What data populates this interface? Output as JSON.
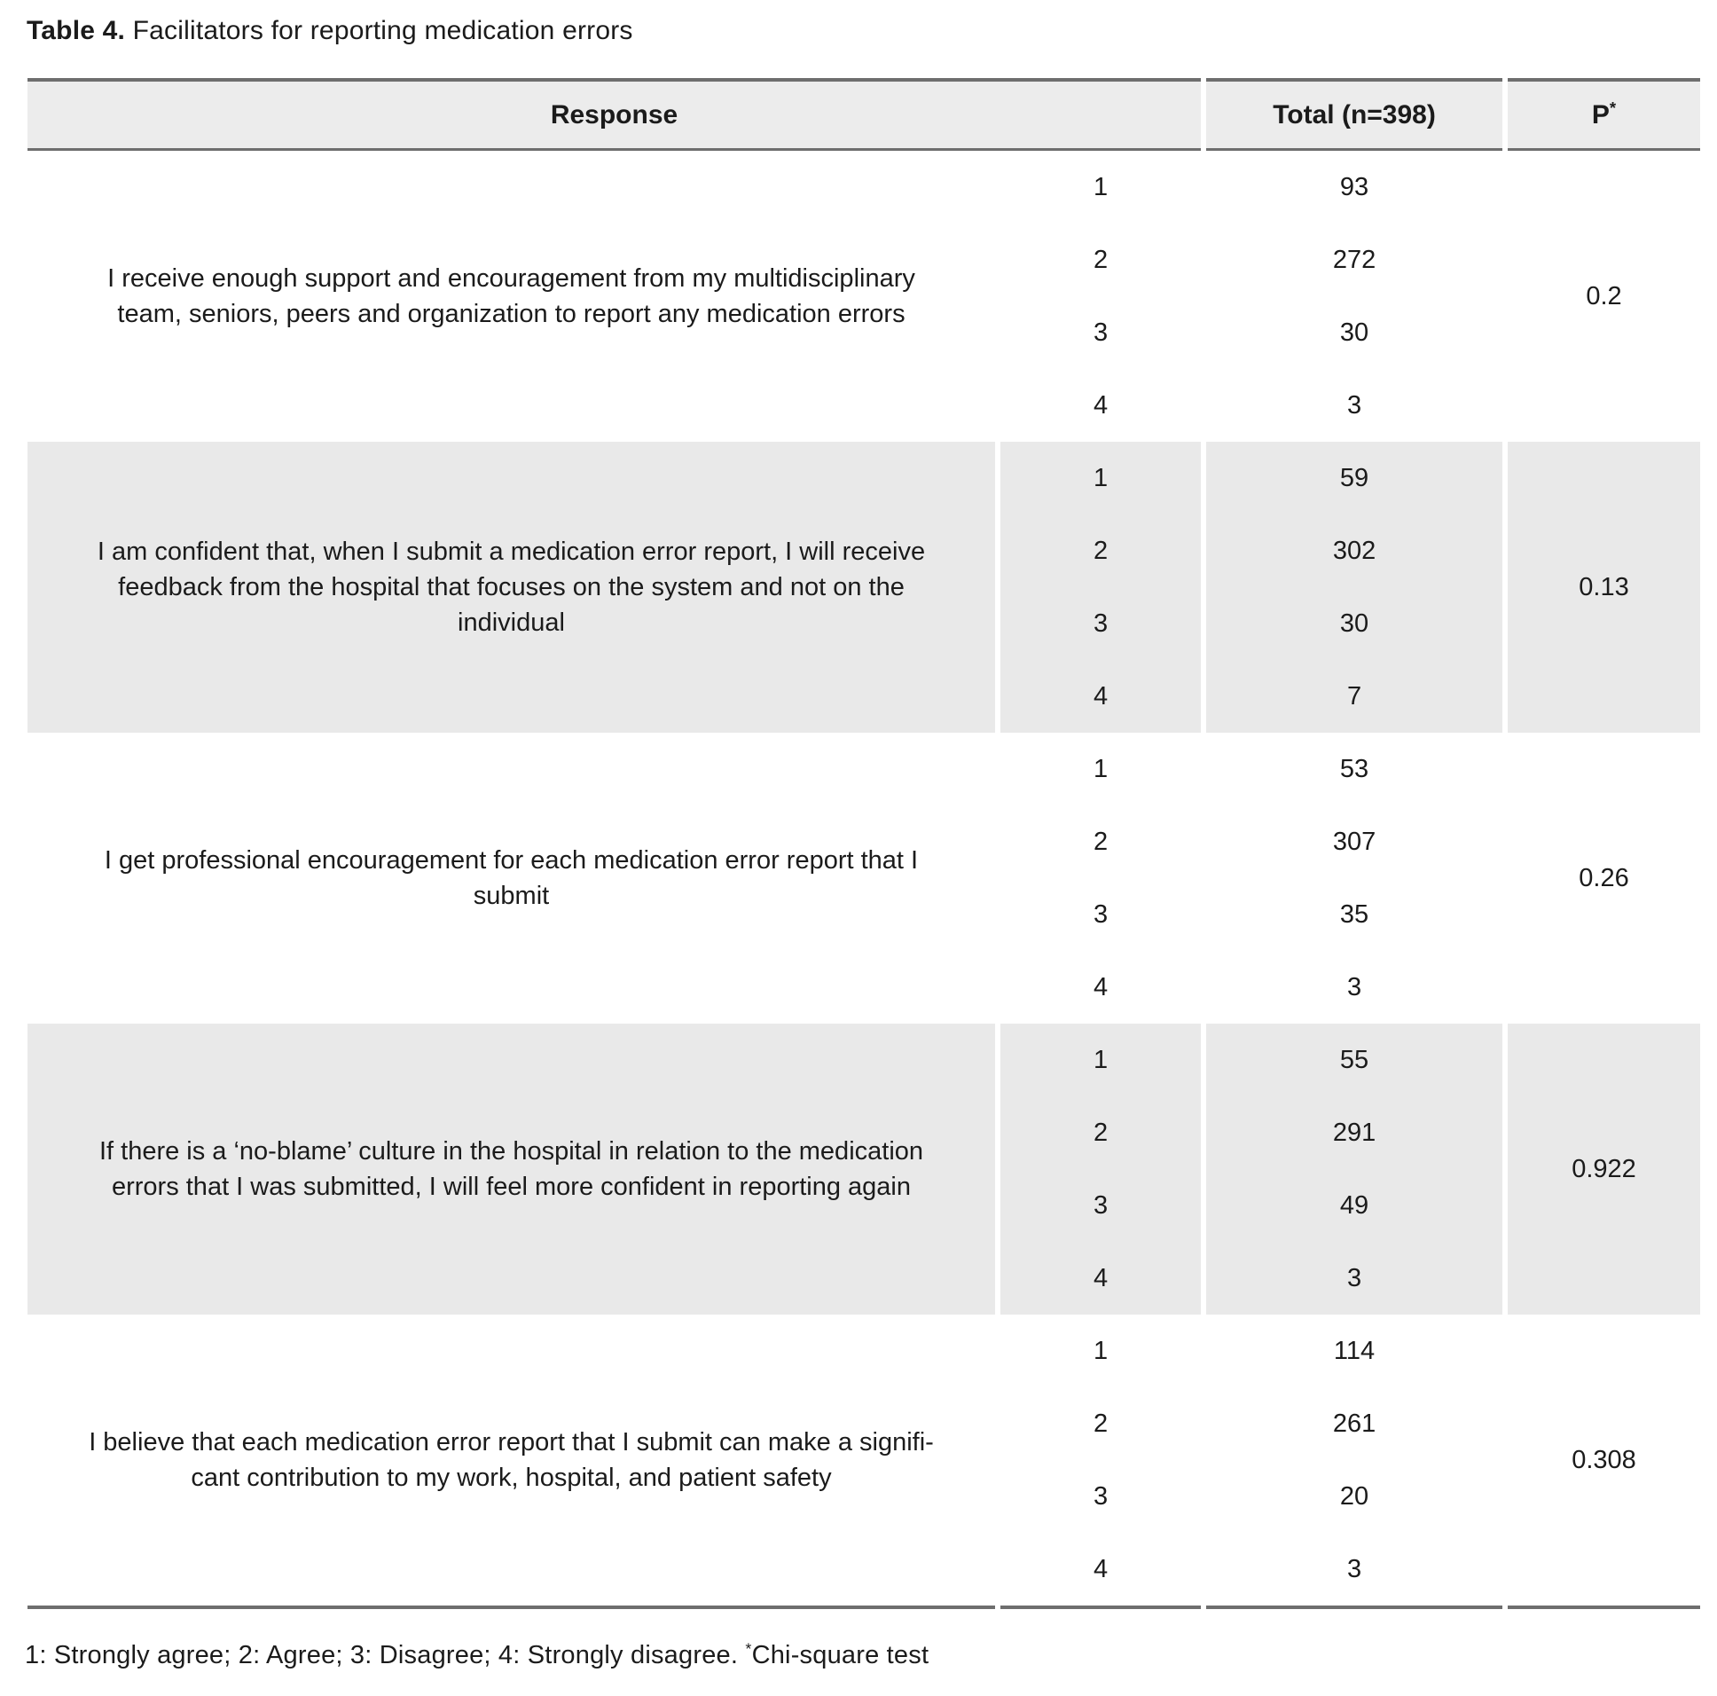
{
  "title": {
    "label": "Table 4.",
    "text": " Facilitators for reporting medication errors"
  },
  "table": {
    "headers": {
      "response": "Response",
      "total": "Total (n=398)",
      "p": "P",
      "p_superscript": "*"
    },
    "blocks": [
      {
        "question": "I receive enough support and encouragement from my multidisciplinary\nteam, seniors, peers and organization to report any medication errors",
        "responses": [
          {
            "code": "1",
            "total": "93"
          },
          {
            "code": "2",
            "total": "272"
          },
          {
            "code": "3",
            "total": "30"
          },
          {
            "code": "4",
            "total": "3"
          }
        ],
        "p_value": "0.2"
      },
      {
        "question": "I am confident that, when I submit a medication error report, I will receive\nfeedback from the hospital that focuses on the system and not on the\nindividual",
        "responses": [
          {
            "code": "1",
            "total": "59"
          },
          {
            "code": "2",
            "total": "302"
          },
          {
            "code": "3",
            "total": "30"
          },
          {
            "code": "4",
            "total": "7"
          }
        ],
        "p_value": "0.13"
      },
      {
        "question": "I get professional encouragement for each medication error report that I\nsubmit",
        "responses": [
          {
            "code": "1",
            "total": "53"
          },
          {
            "code": "2",
            "total": "307"
          },
          {
            "code": "3",
            "total": "35"
          },
          {
            "code": "4",
            "total": "3"
          }
        ],
        "p_value": "0.26"
      },
      {
        "question": "If there is a ‘no-blame’ culture in the hospital in relation to the medication\nerrors that I was submitted, I will feel more confident in reporting again",
        "responses": [
          {
            "code": "1",
            "total": "55"
          },
          {
            "code": "2",
            "total": "291"
          },
          {
            "code": "3",
            "total": "49"
          },
          {
            "code": "4",
            "total": "3"
          }
        ],
        "p_value": "0.922"
      },
      {
        "question": "I believe that each medication error report that I submit can make a signifi-\ncant contribution to my work, hospital, and patient safety",
        "responses": [
          {
            "code": "1",
            "total": "114"
          },
          {
            "code": "2",
            "total": "261"
          },
          {
            "code": "3",
            "total": "20"
          },
          {
            "code": "4",
            "total": "3"
          }
        ],
        "p_value": "0.308"
      }
    ]
  },
  "footnote": {
    "legend": "1: Strongly agree; 2: Agree; 3: Disagree; 4: Strongly disagree. ",
    "superscript": "*",
    "test": "Chi-square test"
  }
}
